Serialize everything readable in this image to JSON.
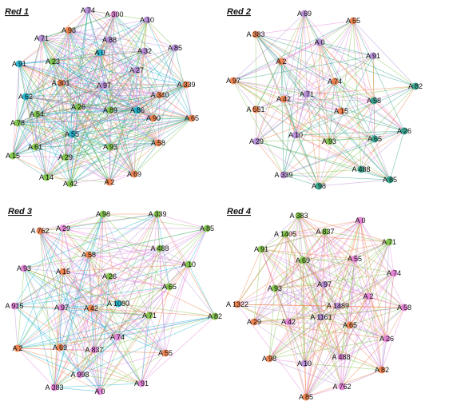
{
  "palette": {
    "cyan": "#1ab3cf",
    "green": "#7cc242",
    "orange": "#ef7c45",
    "purple": "#b48ad6",
    "pink": "#e67fd8",
    "teal": "#2aa189"
  },
  "panels": [
    {
      "title": "Red 1",
      "edge_colors": [
        "purple",
        "orange",
        "green",
        "cyan",
        "pink",
        "teal"
      ],
      "nodes": [
        {
          "label": "A 74",
          "color": "purple"
        },
        {
          "label": "A 300",
          "color": "pink"
        },
        {
          "label": "A 10",
          "color": "purple"
        },
        {
          "label": "A 98",
          "color": "orange"
        },
        {
          "label": "A 88",
          "color": "purple"
        },
        {
          "label": "A 71",
          "color": "purple"
        },
        {
          "label": "A 0",
          "color": "cyan"
        },
        {
          "label": "A 32",
          "color": "purple"
        },
        {
          "label": "A 85",
          "color": "purple"
        },
        {
          "label": "A 91",
          "color": "cyan"
        },
        {
          "label": "A 23",
          "color": "green"
        },
        {
          "label": "A 27",
          "color": "purple"
        },
        {
          "label": "A 301",
          "color": "orange"
        },
        {
          "label": "A 97",
          "color": "purple"
        },
        {
          "label": "A 339",
          "color": "orange"
        },
        {
          "label": "A 62",
          "color": "cyan"
        },
        {
          "label": "A 340",
          "color": "orange"
        },
        {
          "label": "A 26",
          "color": "green"
        },
        {
          "label": "A 89",
          "color": "green"
        },
        {
          "label": "A 86",
          "color": "cyan"
        },
        {
          "label": "A 54",
          "color": "green"
        },
        {
          "label": "A 78",
          "color": "green"
        },
        {
          "label": "A 90",
          "color": "orange"
        },
        {
          "label": "A 65",
          "color": "orange"
        },
        {
          "label": "A 55",
          "color": "cyan"
        },
        {
          "label": "A 61",
          "color": "green"
        },
        {
          "label": "A 93",
          "color": "green"
        },
        {
          "label": "A 58",
          "color": "orange"
        },
        {
          "label": "A 15",
          "color": "green"
        },
        {
          "label": "A 29",
          "color": "green"
        },
        {
          "label": "A 14",
          "color": "green"
        },
        {
          "label": "A 69",
          "color": "orange"
        },
        {
          "label": "A 42",
          "color": "green"
        },
        {
          "label": "A 2",
          "color": "orange"
        }
      ]
    },
    {
      "title": "Red 2",
      "edge_colors": [
        "orange",
        "teal",
        "purple",
        "green",
        "pink"
      ],
      "nodes": [
        {
          "label": "A 69",
          "color": "purple"
        },
        {
          "label": "A 55",
          "color": "orange"
        },
        {
          "label": "A 383",
          "color": "orange"
        },
        {
          "label": "A 0",
          "color": "purple"
        },
        {
          "label": "A 91",
          "color": "purple"
        },
        {
          "label": "A 2",
          "color": "orange"
        },
        {
          "label": "A 97",
          "color": "orange"
        },
        {
          "label": "A 74",
          "color": "orange"
        },
        {
          "label": "A 82",
          "color": "teal"
        },
        {
          "label": "A 42",
          "color": "orange"
        },
        {
          "label": "A 71",
          "color": "purple"
        },
        {
          "label": "A 58",
          "color": "teal"
        },
        {
          "label": "A 551",
          "color": "orange"
        },
        {
          "label": "A 15",
          "color": "orange"
        },
        {
          "label": "A 26",
          "color": "teal"
        },
        {
          "label": "A 10",
          "color": "purple"
        },
        {
          "label": "A 65",
          "color": "teal"
        },
        {
          "label": "A 29",
          "color": "purple"
        },
        {
          "label": "A 93",
          "color": "green"
        },
        {
          "label": "A 488",
          "color": "teal"
        },
        {
          "label": "A 339",
          "color": "purple"
        },
        {
          "label": "A 85",
          "color": "teal"
        },
        {
          "label": "A 98",
          "color": "teal"
        }
      ]
    },
    {
      "title": "Red 3",
      "edge_colors": [
        "green",
        "pink",
        "orange",
        "purple",
        "cyan"
      ],
      "nodes": [
        {
          "label": "A 98",
          "color": "green"
        },
        {
          "label": "A 339",
          "color": "green"
        },
        {
          "label": "A 762",
          "color": "orange"
        },
        {
          "label": "A 29",
          "color": "pink"
        },
        {
          "label": "A 85",
          "color": "green"
        },
        {
          "label": "A 488",
          "color": "green"
        },
        {
          "label": "A 58",
          "color": "orange"
        },
        {
          "label": "A 93",
          "color": "pink"
        },
        {
          "label": "A 10",
          "color": "green"
        },
        {
          "label": "A 15",
          "color": "orange"
        },
        {
          "label": "A 26",
          "color": "green"
        },
        {
          "label": "A 65",
          "color": "green"
        },
        {
          "label": "A 915",
          "color": "pink"
        },
        {
          "label": "A 97",
          "color": "pink"
        },
        {
          "label": "A 1080",
          "color": "cyan"
        },
        {
          "label": "A 42",
          "color": "orange"
        },
        {
          "label": "A 71",
          "color": "green"
        },
        {
          "label": "A 82",
          "color": "green"
        },
        {
          "label": "A 2",
          "color": "orange"
        },
        {
          "label": "A 69",
          "color": "orange"
        },
        {
          "label": "A 74",
          "color": "pink"
        },
        {
          "label": "A 837",
          "color": "pink"
        },
        {
          "label": "A 55",
          "color": "orange"
        },
        {
          "label": "A 998",
          "color": "pink"
        },
        {
          "label": "A 383",
          "color": "pink"
        },
        {
          "label": "A 0",
          "color": "pink"
        },
        {
          "label": "A 91",
          "color": "pink"
        }
      ]
    },
    {
      "title": "Red 4",
      "edge_colors": [
        "green",
        "pink",
        "orange",
        "purple"
      ],
      "nodes": [
        {
          "label": "A 383",
          "color": "green"
        },
        {
          "label": "A 0",
          "color": "pink"
        },
        {
          "label": "A 1405",
          "color": "green"
        },
        {
          "label": "A 837",
          "color": "green"
        },
        {
          "label": "A 71",
          "color": "green"
        },
        {
          "label": "A 91",
          "color": "green"
        },
        {
          "label": "A 69",
          "color": "green"
        },
        {
          "label": "A 55",
          "color": "pink"
        },
        {
          "label": "A 74",
          "color": "pink"
        },
        {
          "label": "A 93",
          "color": "green"
        },
        {
          "label": "A 97",
          "color": "purple"
        },
        {
          "label": "A 2",
          "color": "pink"
        },
        {
          "label": "A 1322",
          "color": "orange"
        },
        {
          "label": "A 1489",
          "color": "purple"
        },
        {
          "label": "A 58",
          "color": "pink"
        },
        {
          "label": "A 29",
          "color": "orange"
        },
        {
          "label": "A 42",
          "color": "pink"
        },
        {
          "label": "A 1161",
          "color": "purple"
        },
        {
          "label": "A 65",
          "color": "orange"
        },
        {
          "label": "A 26",
          "color": "pink"
        },
        {
          "label": "A 98",
          "color": "orange"
        },
        {
          "label": "A 10",
          "color": "purple"
        },
        {
          "label": "A 488",
          "color": "pink"
        },
        {
          "label": "A 82",
          "color": "orange"
        },
        {
          "label": "A 762",
          "color": "pink"
        },
        {
          "label": "A 85",
          "color": "orange"
        }
      ]
    }
  ]
}
